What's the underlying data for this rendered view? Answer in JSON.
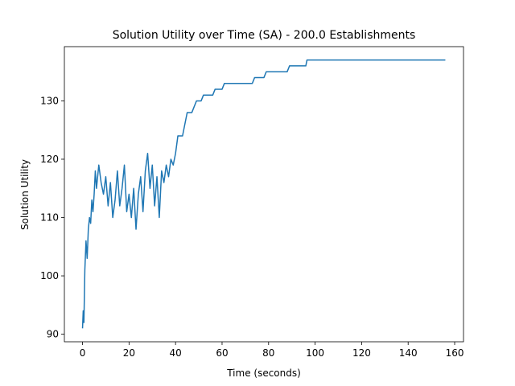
{
  "chart_data": {
    "type": "line",
    "title": "Solution Utility over Time (SA) -  200.0 Establishments",
    "x_label": "Time (seconds)",
    "y_label": "Solution Utility",
    "xlim": [
      -7.8,
      163.8
    ],
    "ylim": [
      88.7,
      139.3
    ],
    "xticks": [
      0,
      20,
      40,
      60,
      80,
      100,
      120,
      140,
      160
    ],
    "yticks": [
      90,
      100,
      110,
      120,
      130
    ],
    "grid": false,
    "series": [
      {
        "name": "Solution Utility",
        "color": "#1f77b4",
        "x": [
          0,
          0.3,
          0.6,
          1,
          1.5,
          2,
          2.5,
          3,
          3.5,
          4,
          4.5,
          5,
          5.5,
          6,
          7,
          8,
          9,
          10,
          11,
          12,
          13,
          14,
          15,
          16,
          17,
          18,
          19,
          20,
          21,
          22,
          23,
          24,
          25,
          26,
          27,
          28,
          29,
          30,
          31,
          32,
          33,
          34,
          35,
          36,
          37,
          38,
          39,
          40,
          41,
          43,
          44,
          45,
          47,
          48,
          49,
          51,
          52,
          56,
          57,
          60,
          61,
          73,
          74,
          78,
          79,
          88,
          89,
          96,
          96.5,
          156
        ],
        "values": [
          91,
          94,
          92,
          101,
          106,
          103,
          108,
          110,
          109,
          113,
          111,
          114,
          118,
          115,
          119,
          116,
          114,
          117,
          112,
          116,
          110,
          113,
          118,
          112,
          115,
          119,
          111,
          114,
          110,
          115,
          108,
          114,
          117,
          111,
          118,
          121,
          115,
          119,
          112,
          117,
          110,
          118,
          116,
          119,
          117,
          120,
          119,
          121,
          124,
          124,
          126,
          128,
          128,
          129,
          130,
          130,
          131,
          131,
          132,
          132,
          133,
          133,
          134,
          134,
          135,
          135,
          136,
          136,
          137,
          137
        ]
      }
    ]
  }
}
